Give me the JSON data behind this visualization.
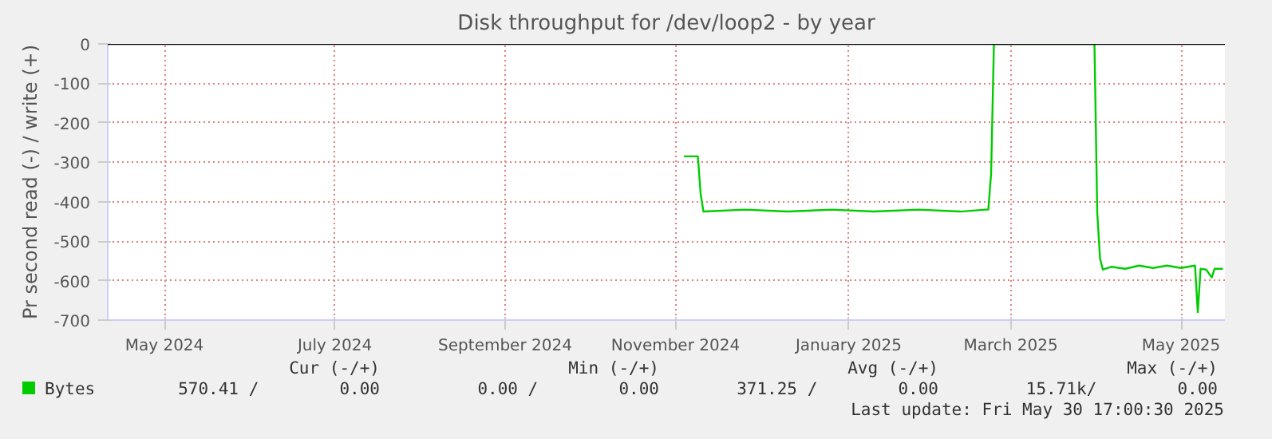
{
  "chart_data": {
    "type": "line",
    "title": "Disk throughput for /dev/loop2 - by year",
    "ylabel": "Pr second read (-) / write (+)",
    "xlim": [
      "2024-04-25T17:00",
      "2025-05-30T17:00"
    ],
    "xticks": [
      {
        "value": "2024-05-16",
        "label": "May 2024"
      },
      {
        "value": "2024-07-16",
        "label": "July 2024"
      },
      {
        "value": "2024-09-15",
        "label": "September 2024"
      },
      {
        "value": "2024-11-15",
        "label": "November 2024"
      },
      {
        "value": "2025-01-16",
        "label": "January 2025"
      },
      {
        "value": "2025-03-15",
        "label": "March 2025"
      },
      {
        "value": "2025-05-15",
        "label": "May 2025"
      }
    ],
    "ylim": [
      -700,
      0
    ],
    "yticks": [
      0,
      -100,
      -200,
      -300,
      -400,
      -500,
      -600,
      -700
    ],
    "grid": true,
    "legend": "bottom",
    "series": [
      {
        "name": "Bytes",
        "color": "#00cc00",
        "x": [
          "2024-11-18",
          "2024-11-23",
          "2024-11-24",
          "2024-11-25",
          "2024-12-10",
          "2024-12-25",
          "2025-01-10",
          "2025-01-25",
          "2025-02-10",
          "2025-02-25",
          "2025-03-06",
          "2025-03-07",
          "2025-03-08",
          "2025-03-09",
          "2025-04-14",
          "2025-04-15",
          "2025-04-16",
          "2025-04-17",
          "2025-04-20",
          "2025-04-25",
          "2025-04-30",
          "2025-05-05",
          "2025-05-10",
          "2025-05-15",
          "2025-05-20",
          "2025-05-21",
          "2025-05-22",
          "2025-05-24",
          "2025-05-26",
          "2025-05-27",
          "2025-05-30"
        ],
        "values": [
          -285,
          -285,
          -380,
          -425,
          -420,
          -425,
          -420,
          -425,
          -420,
          -425,
          -420,
          -420,
          -328,
          0,
          0,
          -428,
          -544,
          -572,
          -565,
          -570,
          -562,
          -568,
          -562,
          -568,
          -562,
          -680,
          -570,
          -572,
          -592,
          -570,
          -570
        ]
      }
    ],
    "ref_lines": [
      {
        "axis": "y",
        "value": 0,
        "color": "#000000"
      }
    ],
    "annotations": [
      "Cur (-/+)",
      "Min (-/+)",
      "Avg (-/+)",
      "Max (-/+)",
      "570.41 /        0.00",
      "0.00 /        0.00",
      "371.25 /        0.00",
      "15.71k/        0.00",
      "Last update: Fri May 30 17:00:30 2025"
    ]
  }
}
